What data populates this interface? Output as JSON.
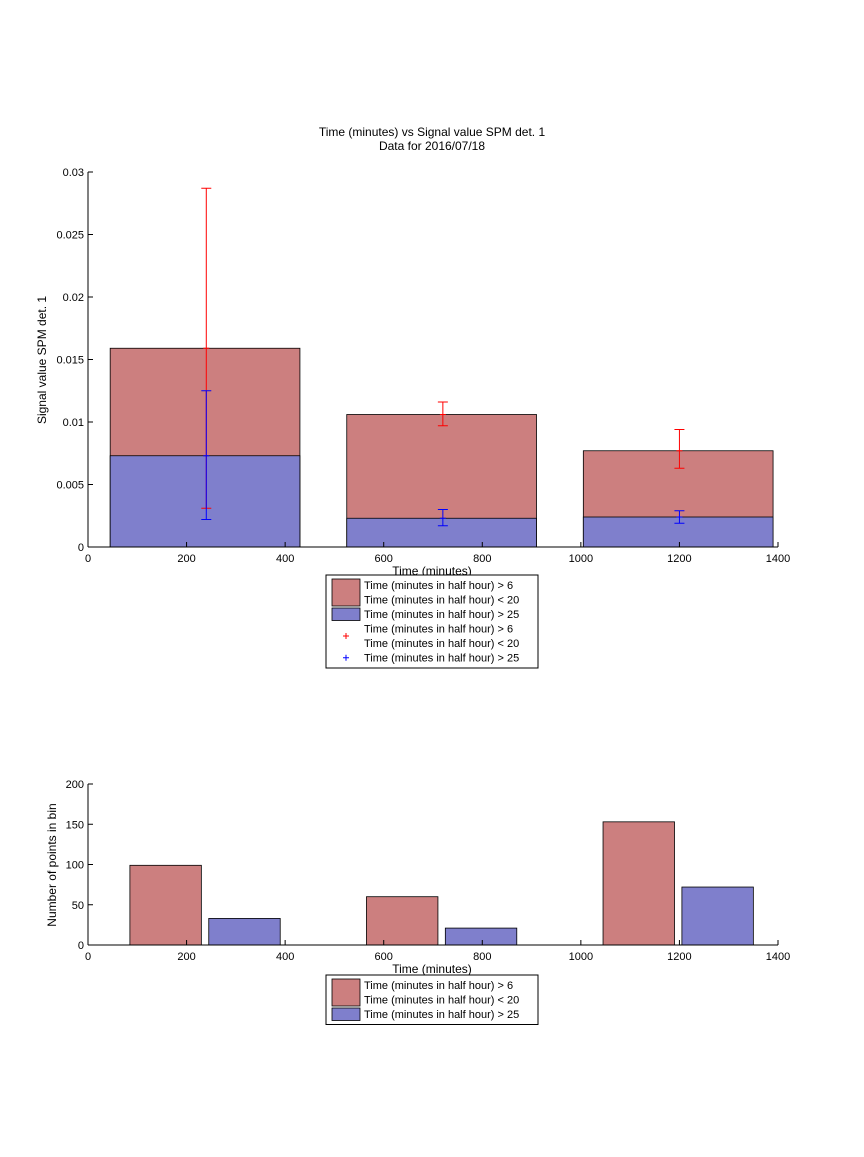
{
  "colors": {
    "red_fill": "#cc7f7f",
    "blue_fill": "#7f7fcc",
    "red_err": "#ff0000",
    "blue_err": "#0000ff"
  },
  "chart_data": [
    {
      "type": "bar",
      "title": "Time (minutes) vs Signal value SPM det. 1",
      "subtitle": "Data for 2016/07/18",
      "xlabel": "Time (minutes)",
      "ylabel": "Signal value SPM det. 1",
      "xlim": [
        0,
        1400
      ],
      "ylim": [
        0,
        0.03
      ],
      "xticks": [
        "0",
        "200",
        "400",
        "600",
        "800",
        "1000",
        "1200",
        "1400"
      ],
      "yticks": [
        "0",
        "0.005",
        "0.01",
        "0.015",
        "0.02",
        "0.025",
        "0.03"
      ],
      "grid": false,
      "legend_position": "below",
      "bars": [
        {
          "x0": 45,
          "x1": 430,
          "red": 0.0159,
          "blue": 0.0073
        },
        {
          "x0": 525,
          "x1": 910,
          "red": 0.0106,
          "blue": 0.0023
        },
        {
          "x0": 1005,
          "x1": 1390,
          "red": 0.0077,
          "blue": 0.0024
        }
      ],
      "series": [
        {
          "name": "Time (minutes in half hour) > 6\nTime (minutes in half hour) < 20",
          "x": [
            240,
            720,
            1200
          ],
          "values": [
            0.0159,
            0.0106,
            0.0077
          ],
          "err_low": [
            0.0031,
            0.0097,
            0.0063
          ],
          "err_high": [
            0.0287,
            0.0116,
            0.0094
          ]
        },
        {
          "name": "Time (minutes in half hour) > 25",
          "x": [
            240,
            720,
            1200
          ],
          "values": [
            0.0073,
            0.0023,
            0.0024
          ],
          "err_low": [
            0.0022,
            0.0017,
            0.0019
          ],
          "err_high": [
            0.0125,
            0.003,
            0.0029
          ]
        }
      ],
      "legend": [
        {
          "kind": "patch",
          "color": "red",
          "lines": [
            "Time (minutes in half hour) > 6",
            "Time (minutes in half hour) < 20"
          ]
        },
        {
          "kind": "patch",
          "color": "blue",
          "lines": [
            "Time (minutes in half hour) > 25"
          ]
        },
        {
          "kind": "marker",
          "color": "red",
          "lines": [
            "Time (minutes in half hour) > 6",
            "Time (minutes in half hour) < 20"
          ]
        },
        {
          "kind": "marker",
          "color": "blue",
          "lines": [
            "Time (minutes in half hour) > 25"
          ]
        }
      ]
    },
    {
      "type": "bar",
      "xlabel": "Time (minutes)",
      "ylabel": "Number of points in bin",
      "xlim": [
        0,
        1400
      ],
      "ylim": [
        0,
        200
      ],
      "xticks": [
        "0",
        "200",
        "400",
        "600",
        "800",
        "1000",
        "1200",
        "1400"
      ],
      "yticks": [
        "0",
        "50",
        "100",
        "150",
        "200"
      ],
      "grid": false,
      "legend_position": "below",
      "bars": [
        {
          "series": "red",
          "x0": 85,
          "x1": 230,
          "value": 99
        },
        {
          "series": "blue",
          "x0": 245,
          "x1": 390,
          "value": 33
        },
        {
          "series": "red",
          "x0": 565,
          "x1": 710,
          "value": 60
        },
        {
          "series": "blue",
          "x0": 725,
          "x1": 870,
          "value": 21
        },
        {
          "series": "red",
          "x0": 1045,
          "x1": 1190,
          "value": 153
        },
        {
          "series": "blue",
          "x0": 1205,
          "x1": 1350,
          "value": 72
        }
      ],
      "legend": [
        {
          "kind": "patch",
          "color": "red",
          "lines": [
            "Time (minutes in half hour) > 6",
            "Time (minutes in half hour) < 20"
          ]
        },
        {
          "kind": "patch",
          "color": "blue",
          "lines": [
            "Time (minutes in half hour) > 25"
          ]
        }
      ]
    }
  ]
}
